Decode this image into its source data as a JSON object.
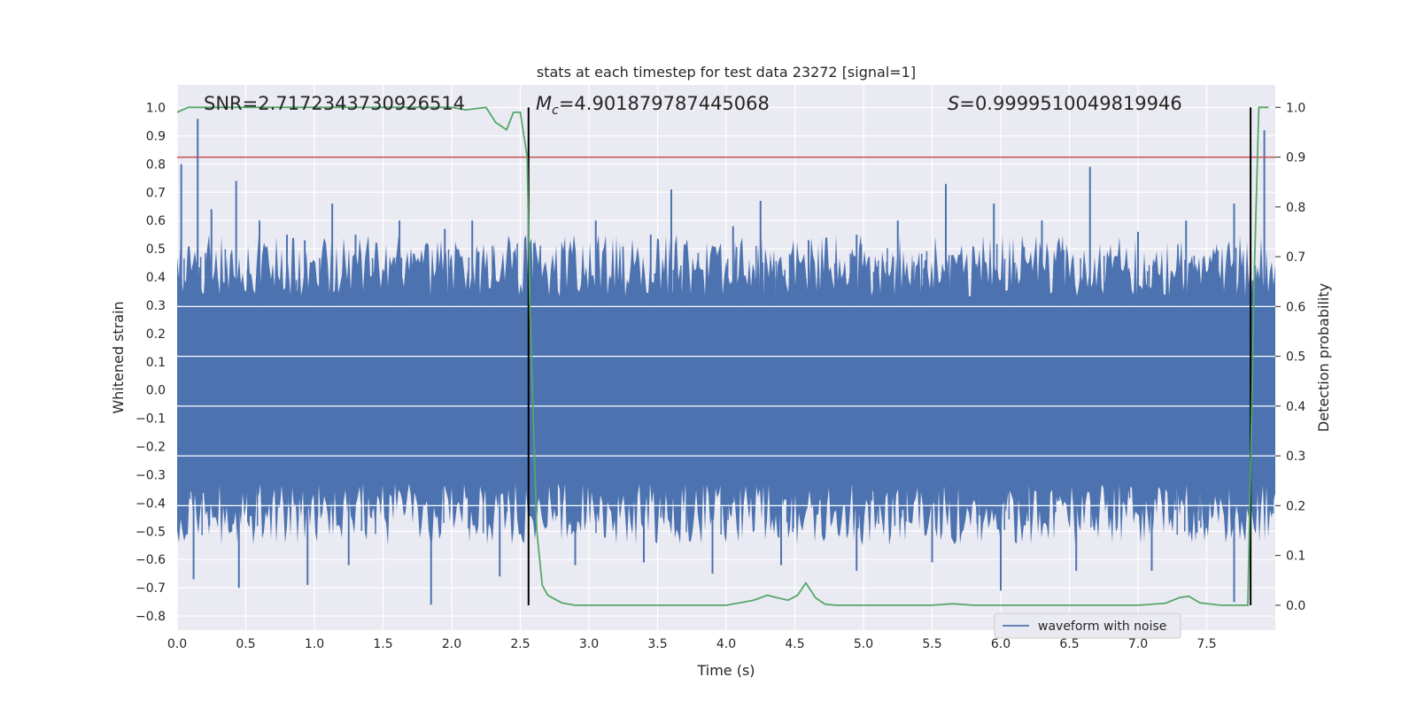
{
  "chart_data": {
    "type": "line",
    "title": "stats at each timestep for test data 23272 [signal=1]",
    "xlabel": "Time (s)",
    "ylabel_left": "Whitened strain",
    "ylabel_right": "Detection probability",
    "xlim": [
      0.0,
      8.0
    ],
    "ylim_left": [
      -0.85,
      1.08
    ],
    "ylim_right": [
      -0.05,
      1.045
    ],
    "x_ticks": [
      "0.0",
      "0.5",
      "1.0",
      "1.5",
      "2.0",
      "2.5",
      "3.0",
      "3.5",
      "4.0",
      "4.5",
      "5.0",
      "5.5",
      "6.0",
      "6.5",
      "7.0",
      "7.5"
    ],
    "y_ticks_left": [
      "1.0",
      "0.9",
      "0.8",
      "0.7",
      "0.6",
      "0.5",
      "0.4",
      "0.3",
      "0.2",
      "0.1",
      "0.0",
      "−0.1",
      "−0.2",
      "−0.3",
      "−0.4",
      "−0.5",
      "−0.6",
      "−0.7",
      "−0.8"
    ],
    "y_ticks_right": [
      "1.0",
      "0.9",
      "0.8",
      "0.7",
      "0.6",
      "0.5",
      "0.4",
      "0.3",
      "0.2",
      "0.1",
      "0.0"
    ],
    "grid": true,
    "legend_position": "bottom-right",
    "annotations": {
      "snr": "SNR=2.7172343730926514",
      "mc_symbol": "M",
      "mc_sub": "c",
      "mc_value": "=4.901879787445068",
      "s_symbol": "S",
      "s_value": "=0.9999510049819946"
    },
    "threshold_right": 0.9,
    "vlines_x": [
      2.56,
      7.82
    ],
    "series": [
      {
        "name": "waveform with noise",
        "color": "#4c72b0",
        "axis": "left",
        "envelope_base": [
          0.4,
          -0.4
        ],
        "peaks_x": [
          0.03,
          0.15,
          0.25,
          0.43,
          0.6,
          0.8,
          0.93,
          1.13,
          1.3,
          1.62,
          1.95,
          2.15,
          2.6,
          3.05,
          3.45,
          3.6,
          4.05,
          4.25,
          4.6,
          4.95,
          5.25,
          5.6,
          5.95,
          6.3,
          6.65,
          7.0,
          7.35,
          7.7,
          7.92
        ],
        "peaks_y": [
          0.8,
          0.96,
          0.64,
          0.74,
          0.6,
          0.55,
          0.53,
          0.66,
          0.55,
          0.6,
          0.57,
          0.6,
          0.52,
          0.6,
          0.55,
          0.71,
          0.58,
          0.67,
          0.53,
          0.55,
          0.6,
          0.73,
          0.66,
          0.6,
          0.79,
          0.56,
          0.6,
          0.66,
          0.92
        ],
        "troughs_x": [
          0.12,
          0.45,
          0.95,
          1.25,
          1.85,
          2.35,
          2.9,
          3.4,
          3.9,
          4.4,
          4.95,
          5.5,
          6.0,
          6.55,
          7.1,
          7.7
        ],
        "troughs_y": [
          -0.67,
          -0.7,
          -0.69,
          -0.62,
          -0.76,
          -0.66,
          -0.62,
          -0.61,
          -0.65,
          -0.62,
          -0.64,
          -0.61,
          -0.71,
          -0.64,
          -0.64,
          -0.75
        ]
      },
      {
        "name": "",
        "color": "#55a868",
        "axis": "right",
        "x": [
          0.0,
          0.08,
          0.5,
          1.0,
          1.5,
          2.0,
          2.1,
          2.25,
          2.32,
          2.4,
          2.45,
          2.5,
          2.55,
          2.57,
          2.62,
          2.66,
          2.7,
          2.8,
          2.9,
          3.0,
          3.5,
          4.0,
          4.2,
          4.3,
          4.37,
          4.45,
          4.52,
          4.58,
          4.65,
          4.72,
          4.8,
          5.0,
          5.5,
          5.65,
          5.8,
          6.0,
          6.5,
          7.0,
          7.2,
          7.3,
          7.37,
          7.45,
          7.6,
          7.8,
          7.85,
          7.88,
          7.92,
          7.95
        ],
        "y": [
          0.99,
          1.0,
          1.0,
          1.0,
          1.0,
          1.0,
          0.995,
          1.0,
          0.97,
          0.955,
          0.99,
          0.99,
          0.9,
          0.6,
          0.15,
          0.04,
          0.02,
          0.005,
          0.0,
          0.0,
          0.0,
          0.0,
          0.01,
          0.02,
          0.015,
          0.01,
          0.02,
          0.045,
          0.015,
          0.002,
          0.0,
          0.0,
          0.0,
          0.003,
          0.0,
          0.0,
          0.0,
          0.0,
          0.004,
          0.015,
          0.018,
          0.005,
          0.0,
          0.0,
          0.7,
          1.0,
          1.0,
          1.0
        ]
      }
    ]
  }
}
